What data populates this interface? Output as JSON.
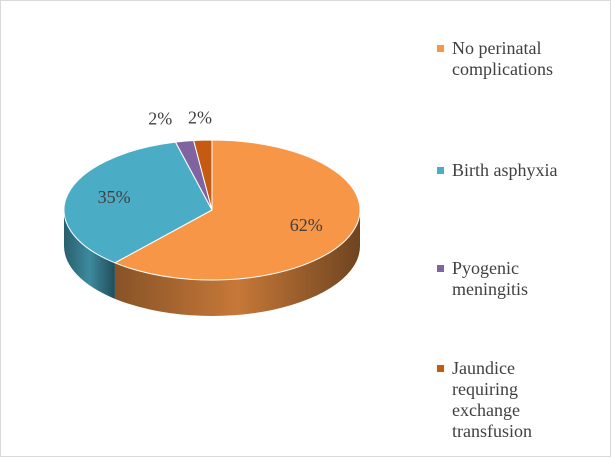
{
  "chart_data": {
    "type": "pie",
    "categories": [
      "No perinatal complications",
      "Birth asphyxia",
      "Pyogenic meningitis",
      "Jaundice requiring exchange transfusion"
    ],
    "values": [
      62,
      35,
      2,
      2
    ],
    "value_labels": [
      "62%",
      "35%",
      "2%",
      "2%"
    ],
    "colors": [
      "#f79646",
      "#4bacc6",
      "#8064a2",
      "#c55a11"
    ],
    "legend": "right"
  }
}
